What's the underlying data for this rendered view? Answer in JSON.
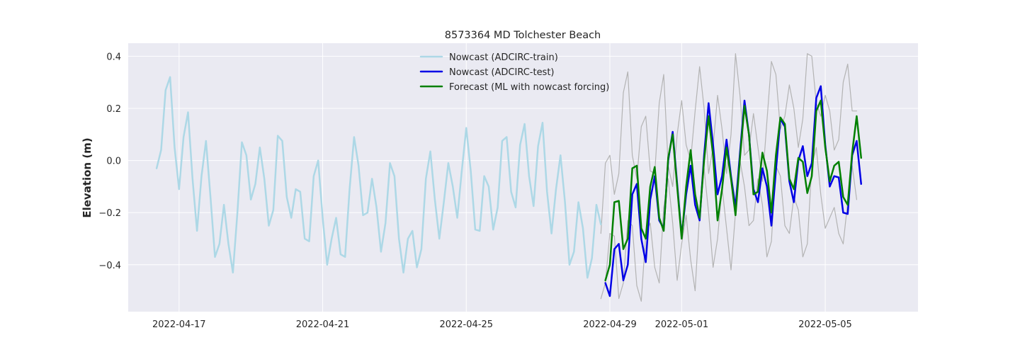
{
  "chart_data": {
    "type": "line",
    "title": "8573364 MD Tolchester Beach",
    "xlabel": "",
    "ylabel": "Elevation (m)",
    "x_axis": "date",
    "xlim": [
      "2022-04-15T14:00",
      "2022-05-07T14:00"
    ],
    "ylim": [
      -0.58,
      0.45
    ],
    "x_ticks": [
      "2022-04-17",
      "2022-04-21",
      "2022-04-25",
      "2022-04-29",
      "2022-05-01",
      "2022-05-05"
    ],
    "y_ticks": [
      -0.4,
      -0.2,
      0.0,
      0.2,
      0.4
    ],
    "y_tick_labels": [
      "−0.4",
      "−0.2",
      "0.0",
      "0.2",
      "0.4"
    ],
    "grid": true,
    "legend_position": "top-center",
    "background": "#eaeaf2",
    "series": [
      {
        "name": "Nowcast (ADCIRC-train)",
        "color": "#add8e6",
        "start": "2022-04-16T09:00",
        "step_hours": 3,
        "values": [
          -0.03,
          0.04,
          0.27,
          0.32,
          0.05,
          -0.11,
          0.09,
          0.185,
          -0.07,
          -0.27,
          -0.06,
          0.075,
          -0.14,
          -0.37,
          -0.32,
          -0.17,
          -0.32,
          -0.43,
          -0.2,
          0.07,
          0.02,
          -0.15,
          -0.09,
          0.05,
          -0.07,
          -0.25,
          -0.19,
          0.095,
          0.075,
          -0.14,
          -0.22,
          -0.11,
          -0.12,
          -0.3,
          -0.31,
          -0.06,
          0.0,
          -0.22,
          -0.4,
          -0.3,
          -0.22,
          -0.36,
          -0.37,
          -0.11,
          0.09,
          -0.02,
          -0.21,
          -0.2,
          -0.07,
          -0.18,
          -0.35,
          -0.24,
          -0.01,
          -0.06,
          -0.3,
          -0.43,
          -0.3,
          -0.27,
          -0.41,
          -0.34,
          -0.07,
          0.035,
          -0.15,
          -0.3,
          -0.16,
          -0.01,
          -0.1,
          -0.22,
          -0.04,
          0.125,
          -0.04,
          -0.265,
          -0.27,
          -0.06,
          -0.1,
          -0.265,
          -0.18,
          0.075,
          0.09,
          -0.12,
          -0.18,
          0.06,
          0.14,
          -0.06,
          -0.175,
          0.055,
          0.145,
          -0.12,
          -0.28,
          -0.11,
          0.02,
          -0.16,
          -0.4,
          -0.35,
          -0.16,
          -0.26,
          -0.45,
          -0.375,
          -0.17,
          -0.245
        ]
      },
      {
        "name": "Nowcast (ADCIRC-test)",
        "color": "#0000e6",
        "start": "2022-04-28T21:00",
        "step_hours": 3,
        "values": [
          -0.47,
          -0.52,
          -0.34,
          -0.32,
          -0.46,
          -0.4,
          -0.13,
          -0.09,
          -0.3,
          -0.39,
          -0.15,
          -0.06,
          -0.23,
          -0.26,
          0.0,
          0.11,
          -0.09,
          -0.29,
          -0.13,
          -0.02,
          -0.17,
          -0.23,
          0.02,
          0.22,
          0.06,
          -0.13,
          -0.06,
          0.08,
          -0.06,
          -0.18,
          0.03,
          0.23,
          0.1,
          -0.11,
          -0.16,
          -0.03,
          -0.1,
          -0.25,
          -0.04,
          0.16,
          0.13,
          -0.08,
          -0.16,
          0.0,
          0.055,
          -0.06,
          -0.01,
          0.24,
          0.285,
          0.06,
          -0.1,
          -0.06,
          -0.065,
          -0.2,
          -0.205,
          0.02,
          0.075,
          -0.09
        ]
      },
      {
        "name": "Forecast (ML with nowcast forcing)",
        "color": "#008000",
        "start": "2022-04-28T21:00",
        "step_hours": 3,
        "values": [
          -0.46,
          -0.4,
          -0.16,
          -0.155,
          -0.34,
          -0.3,
          -0.03,
          -0.02,
          -0.26,
          -0.3,
          -0.1,
          -0.025,
          -0.22,
          -0.27,
          0.01,
          0.1,
          -0.1,
          -0.3,
          -0.1,
          0.04,
          -0.13,
          -0.22,
          0.0,
          0.17,
          0.02,
          -0.23,
          -0.11,
          0.05,
          -0.07,
          -0.21,
          0.01,
          0.21,
          0.1,
          -0.13,
          -0.12,
          0.03,
          -0.04,
          -0.2,
          0.02,
          0.165,
          0.14,
          -0.07,
          -0.11,
          0.01,
          -0.005,
          -0.125,
          -0.06,
          0.19,
          0.23,
          0.05,
          -0.08,
          -0.02,
          -0.005,
          -0.14,
          -0.17,
          0.03,
          0.17,
          0.01
        ]
      },
      {
        "color": "#b3b3b3",
        "start": "2022-04-28T18:00",
        "step_hours": 3,
        "values": [
          -0.53,
          -0.47,
          -0.28,
          -0.29,
          -0.53,
          -0.47,
          -0.23,
          -0.25,
          -0.48,
          -0.54,
          -0.28,
          -0.24,
          -0.41,
          -0.47,
          -0.18,
          -0.07,
          -0.24,
          -0.46,
          -0.32,
          -0.21,
          -0.38,
          -0.5,
          -0.2,
          -0.03,
          -0.2,
          -0.41,
          -0.3,
          -0.1,
          -0.26,
          -0.42,
          -0.2,
          0.0,
          -0.1,
          -0.25,
          -0.23,
          -0.07,
          -0.17,
          -0.37,
          -0.31,
          -0.02,
          -0.06,
          -0.25,
          -0.28,
          -0.14,
          -0.19,
          -0.37,
          -0.32,
          -0.02,
          0.05,
          -0.13,
          -0.26,
          -0.22,
          -0.18,
          -0.28,
          -0.32,
          -0.16,
          -0.02,
          -0.15
        ]
      },
      {
        "color": "#b3b3b3",
        "start": "2022-04-28T18:00",
        "step_hours": 3,
        "values": [
          -0.28,
          -0.01,
          0.02,
          -0.13,
          -0.05,
          0.26,
          0.34,
          0.02,
          -0.07,
          0.13,
          0.17,
          -0.04,
          -0.05,
          0.22,
          0.33,
          -0.02,
          -0.1,
          0.1,
          0.23,
          0.06,
          0.0,
          0.19,
          0.36,
          0.2,
          -0.05,
          0.05,
          0.25,
          0.12,
          -0.05,
          0.1,
          0.41,
          0.25,
          0.02,
          0.04,
          0.18,
          0.05,
          -0.08,
          0.15,
          0.38,
          0.33,
          0.12,
          0.17,
          0.29,
          0.2,
          0.05,
          0.16,
          0.41,
          0.4,
          0.22,
          0.17,
          0.25,
          0.19,
          0.04,
          0.08,
          0.3,
          0.37,
          0.19,
          0.19
        ]
      }
    ]
  }
}
